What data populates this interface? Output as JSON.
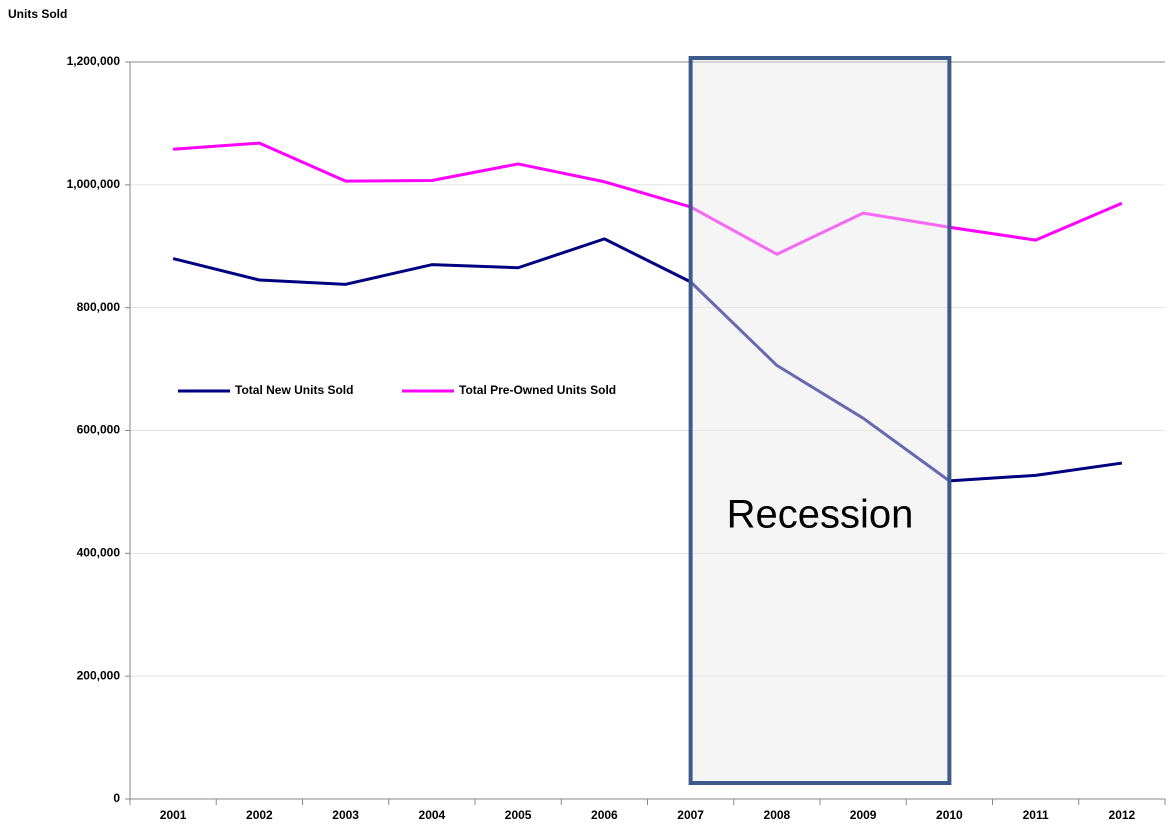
{
  "chart_data": {
    "type": "line",
    "y_axis_label": "Units Sold",
    "categories": [
      "2001",
      "2002",
      "2003",
      "2004",
      "2005",
      "2006",
      "2007",
      "2008",
      "2009",
      "2010",
      "2011",
      "2012"
    ],
    "series": [
      {
        "name": "Total New Units Sold",
        "color": "#000080",
        "values": [
          880000,
          845000,
          838000,
          870000,
          865000,
          912000,
          842000,
          706000,
          620000,
          518000,
          527000,
          547000
        ]
      },
      {
        "name": "Total Pre-Owned Units Sold",
        "color": "#ff00ff",
        "values": [
          1058000,
          1068000,
          1006000,
          1007000,
          1034000,
          1005000,
          964000,
          887000,
          954000,
          931000,
          910000,
          970000
        ]
      }
    ],
    "ylim": [
      0,
      1200000
    ],
    "yticks": [
      0,
      {
        "value": 200000,
        "label": "200,000"
      },
      {
        "value": 400000,
        "label": "400,000"
      },
      {
        "value": 600000,
        "label": "600,000"
      },
      {
        "value": 800000,
        "label": "800,000"
      },
      {
        "value": 1000000,
        "label": "1,000,000"
      },
      {
        "value": 1200000,
        "label": "1,200,000"
      }
    ],
    "grid": true,
    "shade": {
      "label": "Recession",
      "start": "2007",
      "end": "2010",
      "color": "#3c5a8a"
    }
  }
}
